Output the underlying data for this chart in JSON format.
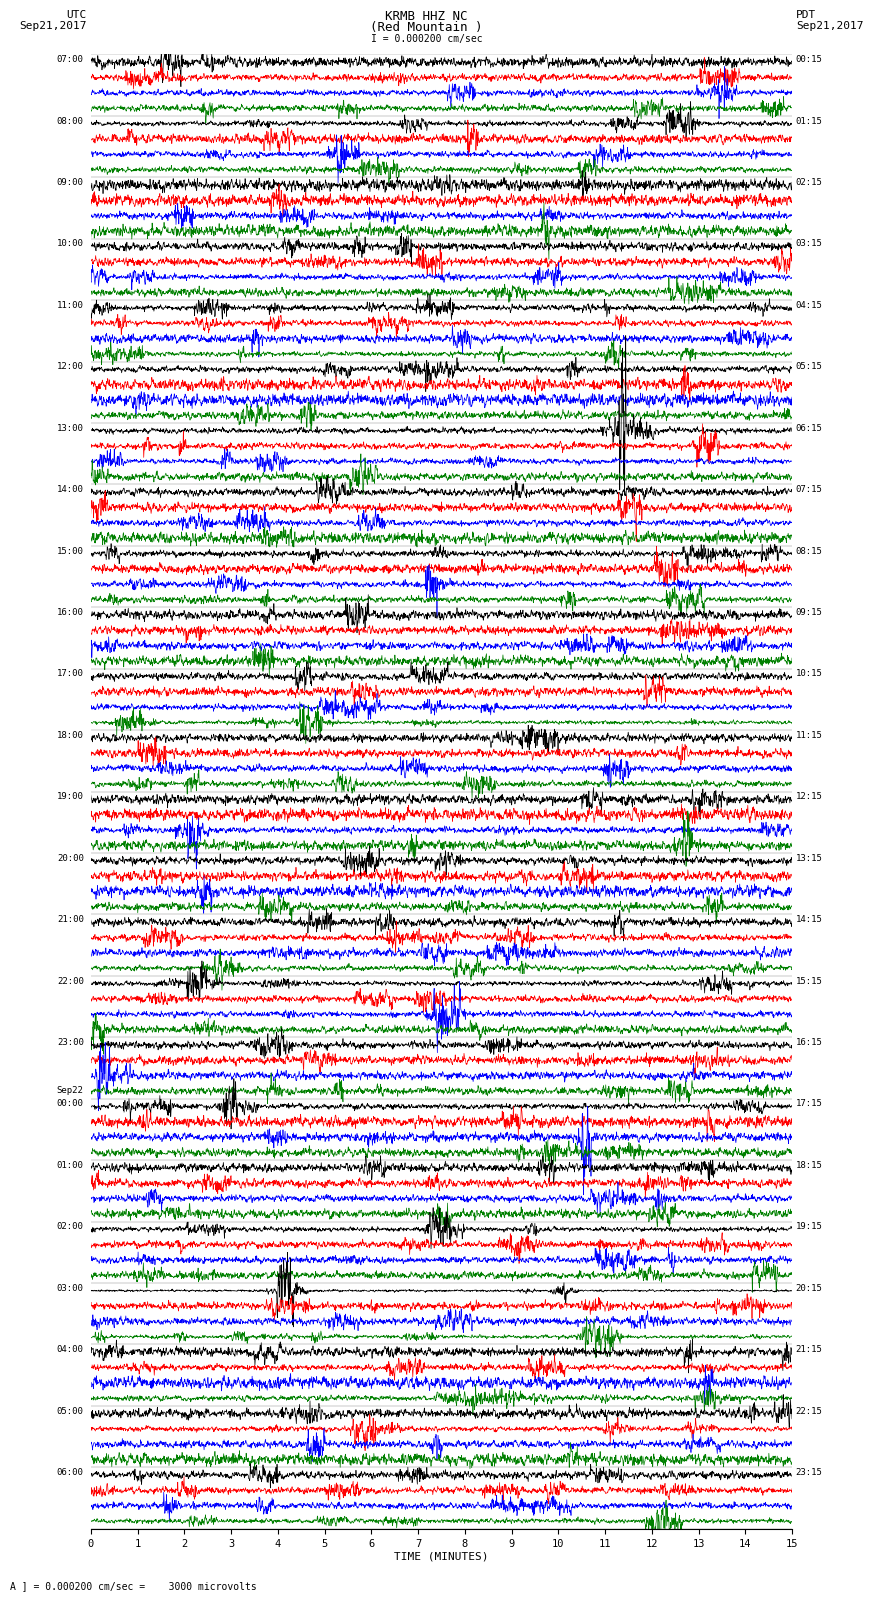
{
  "title_line1": "KRMB HHZ NC",
  "title_line2": "(Red Mountain )",
  "scale_text": "I = 0.000200 cm/sec",
  "left_header_line1": "UTC",
  "left_header_line2": "Sep21,2017",
  "right_header_line1": "PDT",
  "right_header_line2": "Sep21,2017",
  "bottom_label": "TIME (MINUTES)",
  "bottom_note": "A ] = 0.000200 cm/sec =    3000 microvolts",
  "colors": [
    "black",
    "red",
    "blue",
    "green"
  ],
  "utc_labels": [
    "07:00",
    "08:00",
    "09:00",
    "10:00",
    "11:00",
    "12:00",
    "13:00",
    "14:00",
    "15:00",
    "16:00",
    "17:00",
    "18:00",
    "19:00",
    "20:00",
    "21:00",
    "22:00",
    "23:00",
    "Sep22\n00:00",
    "01:00",
    "02:00",
    "03:00",
    "04:00",
    "05:00",
    "06:00"
  ],
  "pdt_labels": [
    "00:15",
    "01:15",
    "02:15",
    "03:15",
    "04:15",
    "05:15",
    "06:15",
    "07:15",
    "08:15",
    "09:15",
    "10:15",
    "11:15",
    "12:15",
    "13:15",
    "14:15",
    "15:15",
    "16:15",
    "17:15",
    "18:15",
    "19:15",
    "20:15",
    "21:15",
    "22:15",
    "23:15"
  ],
  "n_hour_groups": 24,
  "traces_per_group": 4,
  "minutes": 15,
  "amplitude": 0.42,
  "background_color": "white",
  "trace_linewidth": 0.5,
  "n_pts": 2000
}
